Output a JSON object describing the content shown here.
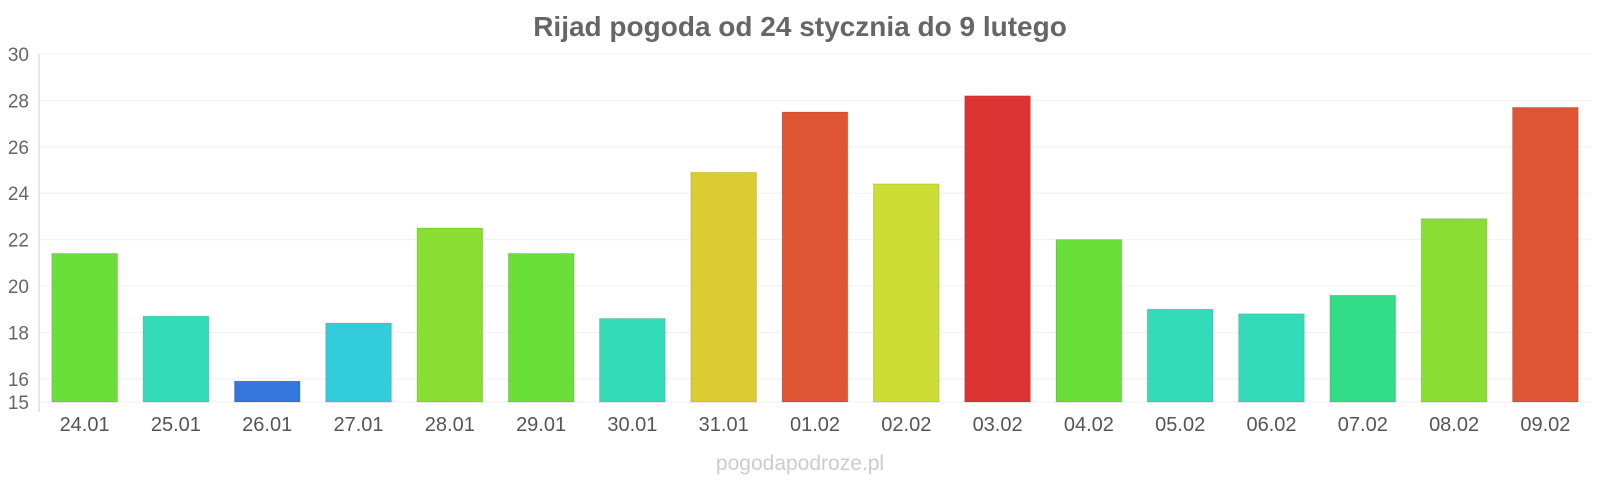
{
  "chart_data": {
    "type": "bar",
    "title": "Rijad pogoda od 24 stycznia do 9 lutego",
    "xlabel": "",
    "ylabel": "",
    "ylim": [
      15,
      30
    ],
    "yticks": [
      15,
      16,
      18,
      20,
      22,
      24,
      26,
      28,
      30
    ],
    "grid": true,
    "legend": "none",
    "categories": [
      "24.01",
      "25.01",
      "26.01",
      "27.01",
      "28.01",
      "29.01",
      "30.01",
      "31.01",
      "01.02",
      "02.02",
      "03.02",
      "04.02",
      "05.02",
      "06.02",
      "07.02",
      "08.02",
      "09.02"
    ],
    "values": [
      21.4,
      18.7,
      15.9,
      18.4,
      22.5,
      21.4,
      18.6,
      24.9,
      27.5,
      24.4,
      28.2,
      22.0,
      19.0,
      18.8,
      19.6,
      22.9,
      27.7
    ],
    "colors": [
      "#6ade39",
      "#33dbb8",
      "#3377dd",
      "#33ccdb",
      "#8ade33",
      "#6ade39",
      "#33dbb8",
      "#dbcc33",
      "#dd5533",
      "#ccdd33",
      "#dd3333",
      "#6ade39",
      "#33dbb8",
      "#33dbb8",
      "#33dd88",
      "#8ade33",
      "#dd5533"
    ]
  },
  "watermark": "pogodapodroze.pl"
}
